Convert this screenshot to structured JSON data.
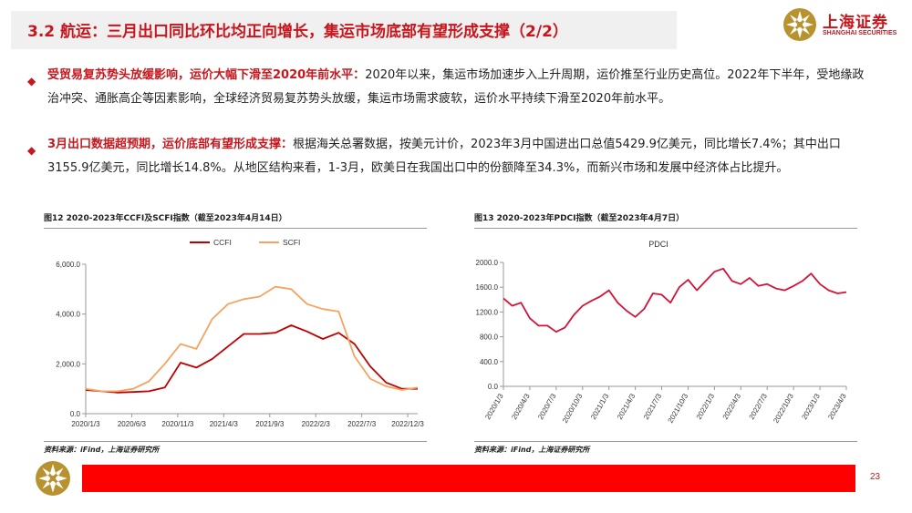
{
  "header": {
    "title": "3.2 航运：三月出口同比环比均正向增长，集运市场底部有望形成支撑（2/2）"
  },
  "logo": {
    "name_cn": "上海证券",
    "name_en": "SHANGHAI SECURITIES"
  },
  "bullets": [
    {
      "icon": "diamond-icon",
      "highlight": "受贸易复苏势头放缓影响，运价大幅下滑至2020年前水平：",
      "text": "2020年以来，集运市场加速步入上升周期，运价推至行业历史高位。2022年下半年，受地缘政治冲突、通胀高企等因素影响，全球经济贸易复苏势头放缓，集运市场需求疲软，运价水平持续下滑至2020年前水平。"
    },
    {
      "icon": "diamond-icon",
      "highlight": "3月出口数据超预期，运价底部有望形成支撑：",
      "text": "根据海关总署数据，按美元计价，2023年3月中国进出口总值5429.9亿美元，同比增长7.4%；其中出口3155.9亿美元，同比增长14.8%。从地区结构来看，1-3月，欧美日在我国出口中的份额降至34.3%，而新兴市场和发展中经济体占比提升。"
    }
  ],
  "figures": [
    {
      "title": "图12 2020-2023年CCFI及SCFI指数（截至2023年4月14日）",
      "source": "资料来源：iFind，上海证券研究所"
    },
    {
      "title": "图13 2020-2023年PDCI指数（截至2023年4月7日）",
      "source": "资料来源：iFind，上海证券研究所"
    }
  ],
  "chart_data": [
    {
      "type": "line",
      "title": "",
      "xlabel": "",
      "ylabel": "",
      "legend_position": "top",
      "ylim": [
        0,
        6000
      ],
      "y_ticks": [
        "0.0",
        "2,000.0",
        "4,000.0",
        "6,000.0"
      ],
      "x_ticks": [
        "2020/1/3",
        "2020/6/3",
        "2020/11/3",
        "2021/4/3",
        "2021/9/3",
        "2022/2/3",
        "2022/7/3",
        "2022/12/3"
      ],
      "grid": false,
      "x": [
        "2020/1",
        "2020/3",
        "2020/5",
        "2020/7",
        "2020/9",
        "2020/11",
        "2021/1",
        "2021/3",
        "2021/5",
        "2021/7",
        "2021/9",
        "2021/11",
        "2022/1",
        "2022/2",
        "2022/3",
        "2022/5",
        "2022/7",
        "2022/9",
        "2022/11",
        "2023/1",
        "2023/3",
        "2023/4"
      ],
      "series": [
        {
          "name": "CCFI",
          "color": "#c00000",
          "values": [
            950,
            900,
            850,
            870,
            900,
            1050,
            2050,
            1850,
            2200,
            2700,
            3200,
            3200,
            3250,
            3550,
            3300,
            3000,
            3250,
            2800,
            1900,
            1250,
            1000,
            1000
          ]
        },
        {
          "name": "SCFI",
          "color": "#f4a460",
          "values": [
            1000,
            900,
            900,
            1000,
            1300,
            2000,
            2800,
            2600,
            3800,
            4400,
            4600,
            4700,
            5100,
            5000,
            4400,
            4200,
            4100,
            2300,
            1400,
            1100,
            950,
            1050
          ]
        }
      ]
    },
    {
      "type": "line",
      "title": "PDCI",
      "xlabel": "",
      "ylabel": "",
      "ylim": [
        0,
        2000
      ],
      "y_ticks": [
        "0.0",
        "400.0",
        "800.0",
        "1200.0",
        "1600.0",
        "2000.0"
      ],
      "x_ticks": [
        "2020/1/3",
        "2020/4/3",
        "2020/7/3",
        "2020/10/3",
        "2021/1/3",
        "2021/4/3",
        "2021/7/3",
        "2021/10/3",
        "2022/1/3",
        "2022/4/3",
        "2022/7/3",
        "2022/10/3",
        "2023/1/3",
        "2023/4/3"
      ],
      "grid": false,
      "x": [
        "2020/1",
        "2020/2",
        "2020/3",
        "2020/4",
        "2020/5",
        "2020/6",
        "2020/7",
        "2020/8",
        "2020/9",
        "2020/10",
        "2020/11",
        "2020/12",
        "2021/1",
        "2021/2",
        "2021/3",
        "2021/4",
        "2021/5",
        "2021/6",
        "2021/7",
        "2021/8",
        "2021/9",
        "2021/10",
        "2021/11",
        "2021/12",
        "2022/1",
        "2022/2",
        "2022/3",
        "2022/4",
        "2022/5",
        "2022/6",
        "2022/7",
        "2022/8",
        "2022/9",
        "2022/10",
        "2022/11",
        "2022/12",
        "2023/1",
        "2023/2",
        "2023/3",
        "2023/4"
      ],
      "series": [
        {
          "name": "PDCI",
          "color": "#d3143a",
          "values": [
            1420,
            1300,
            1350,
            1100,
            980,
            980,
            880,
            950,
            1150,
            1300,
            1380,
            1450,
            1550,
            1350,
            1220,
            1120,
            1250,
            1500,
            1480,
            1350,
            1600,
            1720,
            1550,
            1700,
            1850,
            1900,
            1700,
            1650,
            1750,
            1620,
            1650,
            1580,
            1550,
            1620,
            1700,
            1820,
            1650,
            1550,
            1500,
            1520
          ]
        }
      ]
    }
  ]
}
